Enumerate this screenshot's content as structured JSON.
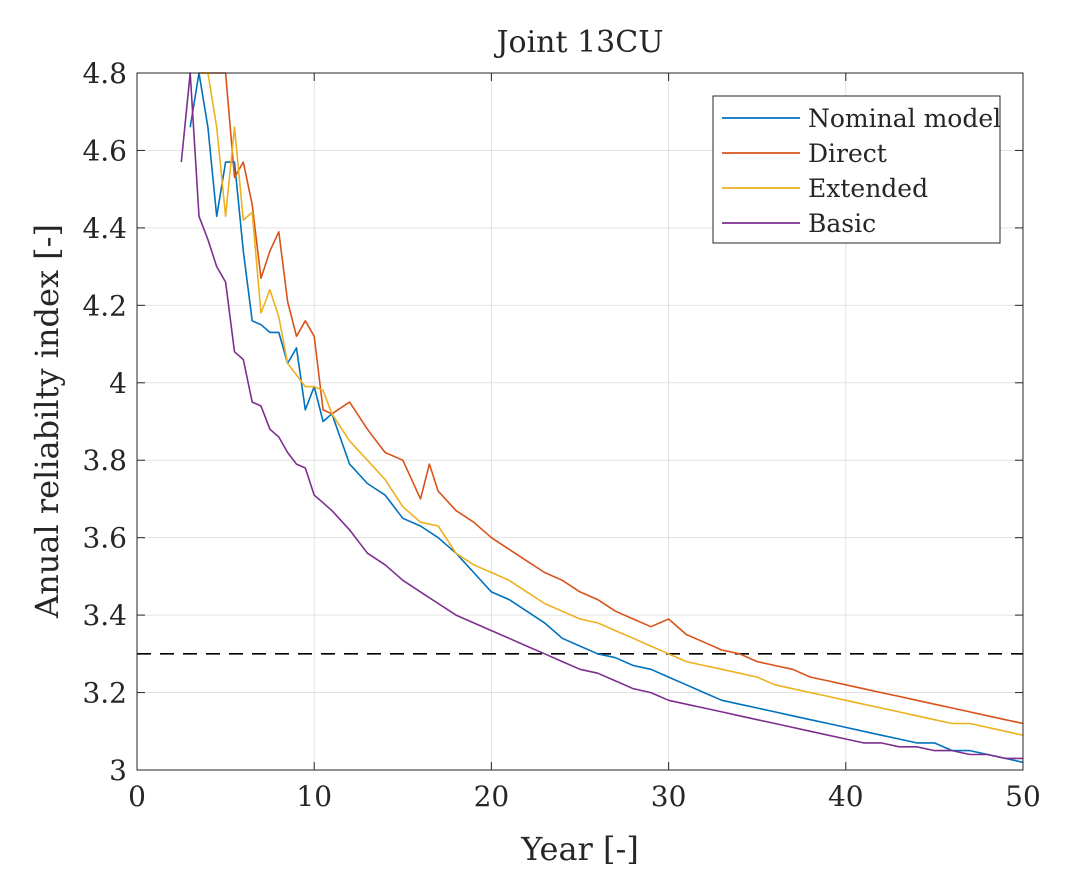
{
  "chart_data": {
    "type": "line",
    "title": "Joint 13CU",
    "xlabel": "Year [-]",
    "ylabel": "Anual reliabilty index [-]",
    "xlim": [
      0,
      50
    ],
    "ylim": [
      3,
      4.8
    ],
    "xticks": [
      0,
      10,
      20,
      30,
      40,
      50
    ],
    "xtick_labels": [
      "0",
      "10",
      "20",
      "30",
      "40",
      "50"
    ],
    "yticks": [
      3,
      3.2,
      3.4,
      3.6,
      3.8,
      4,
      4.2,
      4.4,
      4.6,
      4.8
    ],
    "ytick_labels": [
      "3",
      "3.2",
      "3.4",
      "3.6",
      "3.8",
      "4",
      "4.2",
      "4.4",
      "4.6",
      "4.8"
    ],
    "grid": true,
    "legend_position": "top-right",
    "threshold": {
      "y": 3.3,
      "style": "dashed",
      "color": "#000000"
    },
    "series": [
      {
        "name": "Nominal model",
        "color": "#0072bd",
        "x": [
          3,
          3.5,
          4,
          4.5,
          5,
          5.5,
          6,
          6.5,
          7,
          7.5,
          8,
          8.5,
          9,
          9.5,
          10,
          10.5,
          11,
          12,
          13,
          14,
          15,
          16,
          17,
          18,
          19,
          20,
          21,
          22,
          23,
          24,
          25,
          26,
          27,
          28,
          29,
          30,
          31,
          32,
          33,
          34,
          35,
          36,
          37,
          38,
          39,
          40,
          41,
          42,
          43,
          44,
          45,
          46,
          47,
          48,
          49,
          50
        ],
        "values": [
          4.66,
          4.8,
          4.66,
          4.43,
          4.57,
          4.57,
          4.34,
          4.16,
          4.15,
          4.13,
          4.13,
          4.05,
          4.09,
          3.93,
          3.99,
          3.9,
          3.92,
          3.79,
          3.74,
          3.71,
          3.65,
          3.63,
          3.6,
          3.56,
          3.51,
          3.46,
          3.44,
          3.41,
          3.38,
          3.34,
          3.32,
          3.3,
          3.29,
          3.27,
          3.26,
          3.24,
          3.22,
          3.2,
          3.18,
          3.17,
          3.16,
          3.15,
          3.14,
          3.13,
          3.12,
          3.11,
          3.1,
          3.09,
          3.08,
          3.07,
          3.07,
          3.05,
          3.05,
          3.04,
          3.03,
          3.02
        ]
      },
      {
        "name": "Direct",
        "color": "#d95319",
        "x": [
          3.5,
          4,
          4.5,
          5,
          5.5,
          6,
          6.5,
          7,
          7.5,
          8,
          8.5,
          9,
          9.5,
          10,
          10.5,
          11,
          12,
          13,
          14,
          15,
          16,
          16.5,
          17,
          18,
          19,
          20,
          21,
          22,
          23,
          24,
          25,
          26,
          27,
          28,
          29,
          30,
          31,
          32,
          33,
          34,
          35,
          36,
          37,
          38,
          39,
          40,
          41,
          42,
          43,
          44,
          45,
          46,
          47,
          48,
          49,
          50
        ],
        "values": [
          4.8,
          4.8,
          4.8,
          4.8,
          4.53,
          4.57,
          4.46,
          4.27,
          4.34,
          4.39,
          4.21,
          4.12,
          4.16,
          4.12,
          3.93,
          3.92,
          3.95,
          3.88,
          3.82,
          3.8,
          3.7,
          3.79,
          3.72,
          3.67,
          3.64,
          3.6,
          3.57,
          3.54,
          3.51,
          3.49,
          3.46,
          3.44,
          3.41,
          3.39,
          3.37,
          3.39,
          3.35,
          3.33,
          3.31,
          3.3,
          3.28,
          3.27,
          3.26,
          3.24,
          3.23,
          3.22,
          3.21,
          3.2,
          3.19,
          3.18,
          3.17,
          3.16,
          3.15,
          3.14,
          3.13,
          3.12
        ]
      },
      {
        "name": "Extended",
        "color": "#edb120",
        "x": [
          3.5,
          4,
          4.5,
          5,
          5.5,
          6,
          6.5,
          7,
          7.5,
          8,
          8.5,
          9,
          9.5,
          10,
          10.5,
          11,
          12,
          13,
          14,
          15,
          16,
          17,
          18,
          19,
          20,
          21,
          22,
          23,
          24,
          25,
          26,
          27,
          28,
          29,
          30,
          31,
          32,
          33,
          34,
          35,
          36,
          37,
          38,
          39,
          40,
          41,
          42,
          43,
          44,
          45,
          46,
          47,
          48,
          49,
          50
        ],
        "values": [
          4.8,
          4.8,
          4.66,
          4.43,
          4.66,
          4.42,
          4.44,
          4.18,
          4.24,
          4.17,
          4.05,
          4.02,
          3.99,
          3.99,
          3.98,
          3.92,
          3.85,
          3.8,
          3.75,
          3.68,
          3.64,
          3.63,
          3.56,
          3.53,
          3.51,
          3.49,
          3.46,
          3.43,
          3.41,
          3.39,
          3.38,
          3.36,
          3.34,
          3.32,
          3.3,
          3.28,
          3.27,
          3.26,
          3.25,
          3.24,
          3.22,
          3.21,
          3.2,
          3.19,
          3.18,
          3.17,
          3.16,
          3.15,
          3.14,
          3.13,
          3.12,
          3.12,
          3.11,
          3.1,
          3.09
        ]
      },
      {
        "name": "Basic",
        "color": "#7e2f8e",
        "x": [
          2.5,
          3,
          3.5,
          4,
          4.5,
          5,
          5.5,
          6,
          6.5,
          7,
          7.5,
          8,
          8.5,
          9,
          9.5,
          10,
          10.5,
          11,
          12,
          13,
          14,
          15,
          16,
          17,
          18,
          19,
          20,
          21,
          22,
          23,
          24,
          25,
          26,
          27,
          28,
          29,
          30,
          31,
          32,
          33,
          34,
          35,
          36,
          37,
          38,
          39,
          40,
          41,
          42,
          43,
          44,
          45,
          46,
          47,
          48,
          49,
          50
        ],
        "values": [
          4.57,
          4.8,
          4.43,
          4.37,
          4.3,
          4.26,
          4.08,
          4.06,
          3.95,
          3.94,
          3.88,
          3.86,
          3.82,
          3.79,
          3.78,
          3.71,
          3.69,
          3.67,
          3.62,
          3.56,
          3.53,
          3.49,
          3.46,
          3.43,
          3.4,
          3.38,
          3.36,
          3.34,
          3.32,
          3.3,
          3.28,
          3.26,
          3.25,
          3.23,
          3.21,
          3.2,
          3.18,
          3.17,
          3.16,
          3.15,
          3.14,
          3.13,
          3.12,
          3.11,
          3.1,
          3.09,
          3.08,
          3.07,
          3.07,
          3.06,
          3.06,
          3.05,
          3.05,
          3.04,
          3.04,
          3.03,
          3.03
        ]
      }
    ]
  }
}
